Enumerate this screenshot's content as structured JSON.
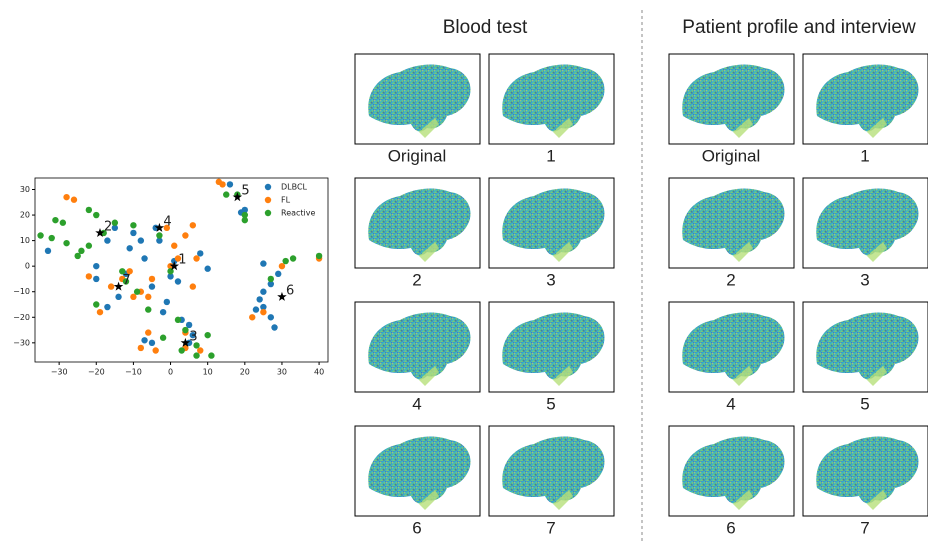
{
  "chart_data": {
    "type": "scatter",
    "xlim": [
      -36.5,
      42.4
    ],
    "ylim": [
      -37.5,
      34.5
    ],
    "xticks": [
      {
        "value": -30,
        "label": "−30"
      },
      {
        "value": -20,
        "label": "−20"
      },
      {
        "value": -10,
        "label": "−10"
      },
      0,
      10,
      20,
      30,
      40
    ],
    "yticks": [
      {
        "value": -30,
        "label": "−30"
      },
      {
        "value": -20,
        "label": "−20"
      },
      {
        "value": -10,
        "label": "−10"
      },
      0,
      10,
      20,
      30
    ],
    "legend": "upper right",
    "series": [
      {
        "name": "DLBCL",
        "color": "#1f77b4",
        "x": [
          -33,
          -20,
          -20,
          -17,
          -14,
          -12,
          -11,
          -8,
          -7,
          -5,
          -4,
          -3,
          -2,
          -1,
          0,
          1,
          2,
          3,
          5,
          5,
          6,
          -7,
          -5,
          8,
          10,
          16,
          19,
          20,
          23,
          24,
          25,
          25,
          27,
          27,
          28,
          25,
          29,
          -17,
          -15,
          -10
        ],
        "y": [
          6,
          0,
          -5,
          -16,
          -12,
          -3,
          7,
          10,
          3,
          -8,
          15,
          10,
          -18,
          -14,
          -4,
          2,
          -6,
          -21,
          -23,
          -30,
          -27,
          -29,
          -30,
          5,
          -1,
          32,
          21,
          22,
          -17,
          -13,
          -10,
          -16,
          -7,
          -20,
          -24,
          1,
          -3,
          10,
          15,
          13
        ]
      },
      {
        "name": "FL",
        "color": "#ff7f0e",
        "x": [
          -28,
          -26,
          -22,
          -19,
          -16,
          -13,
          -11,
          -10,
          -8,
          -6,
          -5,
          0,
          2,
          1,
          4,
          6,
          6,
          7,
          4,
          4,
          8,
          -6,
          -4,
          -8,
          13,
          14,
          22,
          25,
          30,
          40,
          -1
        ],
        "y": [
          27,
          26,
          -4,
          -18,
          -8,
          -5,
          -2,
          -12,
          -10,
          -12,
          -5,
          0,
          3,
          8,
          12,
          16,
          -8,
          3,
          -26,
          -32,
          -33,
          -26,
          -33,
          -32,
          33,
          32,
          -20,
          -18,
          0,
          3,
          15
        ]
      },
      {
        "name": "Reactive",
        "color": "#2ca02c",
        "x": [
          -35,
          -32,
          -31,
          -29,
          -28,
          -25,
          -24,
          -22,
          -20,
          -20,
          -18,
          -15,
          -13,
          -12,
          -9,
          -3,
          0,
          2,
          3,
          4,
          7,
          7,
          11,
          10,
          15,
          18,
          20,
          20,
          27,
          31,
          33,
          40,
          -22,
          -6,
          -10,
          -2
        ],
        "y": [
          12,
          11,
          18,
          17,
          9,
          4,
          6,
          22,
          20,
          -15,
          13,
          17,
          -2,
          -6,
          -10,
          12,
          -2,
          -21,
          -33,
          -25,
          -31,
          -35,
          -35,
          -27,
          28,
          28,
          18,
          20,
          -5,
          2,
          3,
          4,
          8,
          -17,
          16,
          -28
        ]
      }
    ],
    "annotations": [
      {
        "label": "1",
        "x": 1,
        "y": 0
      },
      {
        "label": "2",
        "x": -19,
        "y": 13
      },
      {
        "label": "3",
        "x": 4,
        "y": -30
      },
      {
        "label": "4",
        "x": -3,
        "y": 15
      },
      {
        "label": "5",
        "x": 18,
        "y": 27
      },
      {
        "label": "6",
        "x": 30,
        "y": -12
      },
      {
        "label": "7",
        "x": -14,
        "y": -8
      }
    ]
  },
  "panels": [
    {
      "title": "Blood test",
      "captions": [
        "Original",
        "1",
        "2",
        "3",
        "4",
        "5",
        "6",
        "7"
      ]
    },
    {
      "title": "Patient profile and interview",
      "captions": [
        "Original",
        "1",
        "2",
        "3",
        "4",
        "5",
        "6",
        "7"
      ]
    }
  ]
}
